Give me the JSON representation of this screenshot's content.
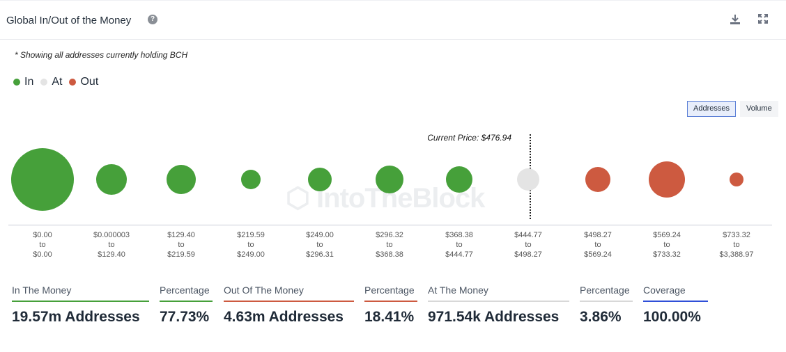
{
  "header": {
    "title": "Global In/Out of the Money",
    "help_icon": "question-circle-icon",
    "download_icon": "download-icon",
    "expand_icon": "expand-icon"
  },
  "note": "* Showing all addresses currently holding BCH",
  "toggles": {
    "addresses": "Addresses",
    "volume": "Volume",
    "active": "addresses"
  },
  "watermark": "IntoTheBlock",
  "colors": {
    "in": "#46a03a",
    "at": "#e4e4e4",
    "out": "#cd5a40",
    "coverage": "#2f4fd8",
    "at_line": "#d8d8d8"
  },
  "chart_data": {
    "type": "bubble",
    "legend": [
      {
        "label": "In",
        "status": "in"
      },
      {
        "label": "At",
        "status": "at"
      },
      {
        "label": "Out",
        "status": "out"
      }
    ],
    "current_price_label": "Current Price: $476.94",
    "current_price": 476.94,
    "buckets": [
      {
        "from": "$0.00",
        "to": "$0.00",
        "status": "in",
        "relative_size": 45
      },
      {
        "from": "$0.000003",
        "to": "$129.40",
        "status": "in",
        "relative_size": 22
      },
      {
        "from": "$129.40",
        "to": "$219.59",
        "status": "in",
        "relative_size": 21
      },
      {
        "from": "$219.59",
        "to": "$249.00",
        "status": "in",
        "relative_size": 14
      },
      {
        "from": "$249.00",
        "to": "$296.31",
        "status": "in",
        "relative_size": 17
      },
      {
        "from": "$296.32",
        "to": "$368.38",
        "status": "in",
        "relative_size": 20
      },
      {
        "from": "$368.38",
        "to": "$444.77",
        "status": "in",
        "relative_size": 19
      },
      {
        "from": "$444.77",
        "to": "$498.27",
        "status": "at",
        "relative_size": 16
      },
      {
        "from": "$498.27",
        "to": "$569.24",
        "status": "out",
        "relative_size": 18
      },
      {
        "from": "$569.24",
        "to": "$733.32",
        "status": "out",
        "relative_size": 26
      },
      {
        "from": "$733.32",
        "to": "$3,388.97",
        "status": "out",
        "relative_size": 10
      }
    ],
    "to_word": "to"
  },
  "stats": [
    {
      "label": "In The Money",
      "value": "19.57m Addresses",
      "color": "in"
    },
    {
      "label": "Percentage",
      "value": "77.73%",
      "color": "in"
    },
    {
      "label": "Out Of The Money",
      "value": "4.63m Addresses",
      "color": "out"
    },
    {
      "label": "Percentage",
      "value": "18.41%",
      "color": "out"
    },
    {
      "label": "At The Money",
      "value": "971.54k Addresses",
      "color": "at_line"
    },
    {
      "label": "Percentage",
      "value": "3.86%",
      "color": "at_line"
    },
    {
      "label": "Coverage",
      "value": "100.00%",
      "color": "coverage"
    }
  ]
}
